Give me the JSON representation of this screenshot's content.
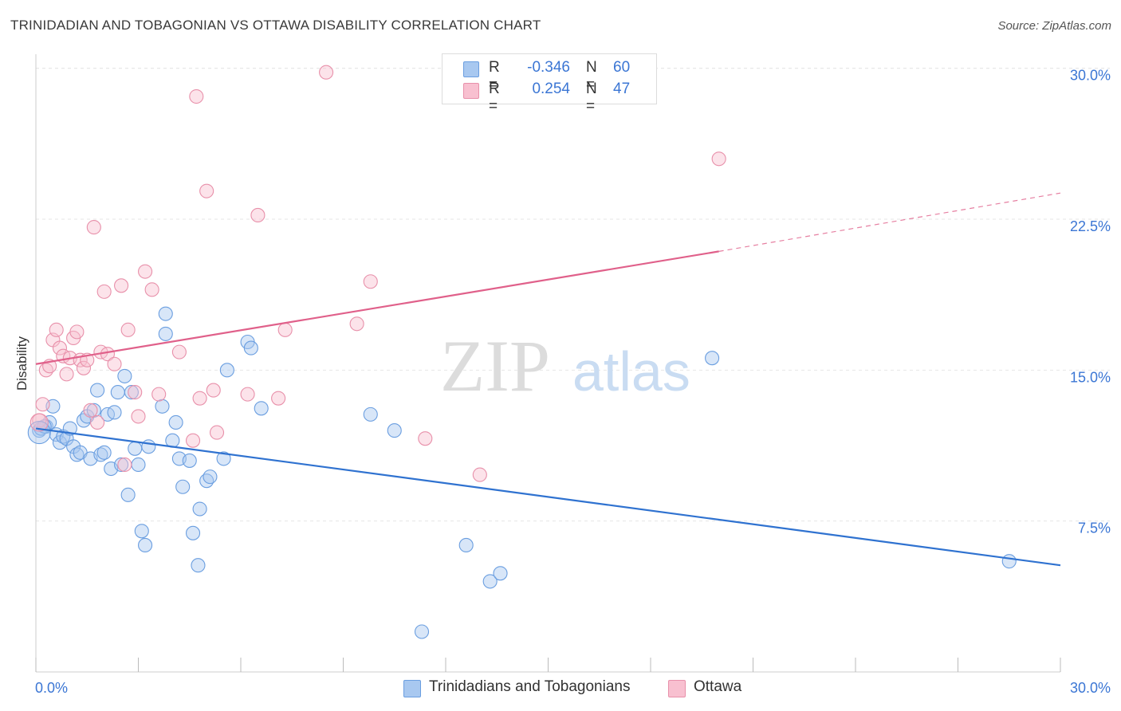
{
  "title": "TRINIDADIAN AND TOBAGONIAN VS OTTAWA DISABILITY CORRELATION CHART",
  "source": "Source: ZipAtlas.com",
  "watermark": {
    "zip": "ZIP",
    "atlas": "atlas"
  },
  "legend": {
    "rows": [
      {
        "r_key": "R =",
        "r_value": "-0.346",
        "n_key": "N =",
        "n_value": "60",
        "color": "#a8c8f0",
        "border": "#6a9ee0"
      },
      {
        "r_key": "R =",
        "r_value": "0.254",
        "n_key": "N =",
        "n_value": "47",
        "color": "#f8c0d0",
        "border": "#e890aa"
      }
    ]
  },
  "bottom_legend": {
    "items": [
      {
        "label": "Trinidadians and Tobagonians",
        "color": "#a8c8f0",
        "border": "#6a9ee0"
      },
      {
        "label": "Ottawa",
        "color": "#f8c0d0",
        "border": "#e890aa"
      }
    ]
  },
  "chart_data": {
    "type": "scatter",
    "title": "TRINIDADIAN AND TOBAGONIAN VS OTTAWA DISABILITY CORRELATION CHART",
    "xlabel": "",
    "ylabel": "Disability",
    "xlim": [
      0,
      30
    ],
    "ylim": [
      0,
      30.7
    ],
    "x_tick_labels": [
      "0.0%",
      "30.0%"
    ],
    "y_ticks": [
      7.5,
      15.0,
      22.5,
      30.0
    ],
    "y_tick_labels": [
      "7.5%",
      "15.0%",
      "22.5%",
      "30.0%"
    ],
    "grid": "horizontal dashed",
    "legend_position": "top-center",
    "series": [
      {
        "name": "Trinidadians and Tobagonians",
        "color": "#6a9ee0",
        "fill": "rgba(168,200,240,0.45)",
        "line_color": "#2f72d0",
        "trend": {
          "x": [
            0,
            30
          ],
          "y": [
            12.1,
            5.3
          ]
        },
        "points": [
          [
            0.1,
            12.0
          ],
          [
            0.3,
            12.2
          ],
          [
            0.4,
            12.4
          ],
          [
            0.5,
            13.2
          ],
          [
            0.6,
            11.8
          ],
          [
            0.7,
            11.4
          ],
          [
            0.8,
            11.7
          ],
          [
            0.9,
            11.6
          ],
          [
            1.0,
            12.1
          ],
          [
            1.1,
            11.2
          ],
          [
            1.2,
            10.8
          ],
          [
            1.3,
            10.9
          ],
          [
            1.4,
            12.5
          ],
          [
            1.5,
            12.7
          ],
          [
            1.6,
            10.6
          ],
          [
            1.7,
            13.0
          ],
          [
            1.8,
            14.0
          ],
          [
            1.9,
            10.8
          ],
          [
            2.0,
            10.9
          ],
          [
            2.1,
            12.8
          ],
          [
            2.2,
            10.1
          ],
          [
            2.3,
            12.9
          ],
          [
            2.4,
            13.9
          ],
          [
            2.5,
            10.3
          ],
          [
            2.6,
            14.7
          ],
          [
            2.7,
            8.8
          ],
          [
            2.8,
            13.9
          ],
          [
            2.9,
            11.1
          ],
          [
            3.0,
            10.3
          ],
          [
            3.1,
            7.0
          ],
          [
            3.2,
            6.3
          ],
          [
            3.3,
            11.2
          ],
          [
            3.7,
            13.2
          ],
          [
            3.8,
            16.8
          ],
          [
            4.0,
            11.5
          ],
          [
            4.1,
            12.4
          ],
          [
            4.2,
            10.6
          ],
          [
            4.3,
            9.2
          ],
          [
            4.5,
            10.5
          ],
          [
            4.6,
            6.9
          ],
          [
            4.75,
            5.3
          ],
          [
            4.8,
            8.1
          ],
          [
            5.0,
            9.5
          ],
          [
            5.1,
            9.7
          ],
          [
            5.5,
            10.6
          ],
          [
            5.6,
            15.0
          ],
          [
            6.2,
            16.4
          ],
          [
            6.3,
            16.1
          ],
          [
            6.6,
            13.1
          ],
          [
            9.8,
            12.8
          ],
          [
            10.5,
            12.0
          ],
          [
            11.3,
            2.0
          ],
          [
            12.6,
            6.3
          ],
          [
            13.3,
            4.5
          ],
          [
            13.6,
            4.9
          ],
          [
            19.8,
            15.6
          ],
          [
            28.5,
            5.5
          ],
          [
            0.15,
            12.1
          ],
          [
            0.25,
            12.2
          ],
          [
            3.8,
            17.8
          ]
        ]
      },
      {
        "name": "Ottawa",
        "color": "#e890aa",
        "fill": "rgba(248,192,208,0.45)",
        "line_color": "#e0608a",
        "trend": {
          "x": [
            0,
            20
          ],
          "y": [
            15.3,
            20.9
          ]
        },
        "trend_extension": {
          "x": [
            20,
            30
          ],
          "y": [
            20.9,
            23.8
          ]
        },
        "points": [
          [
            0.1,
            12.5
          ],
          [
            0.2,
            13.3
          ],
          [
            0.3,
            15.0
          ],
          [
            0.4,
            15.2
          ],
          [
            0.5,
            16.5
          ],
          [
            0.6,
            17.0
          ],
          [
            0.7,
            16.1
          ],
          [
            0.8,
            15.7
          ],
          [
            0.9,
            14.8
          ],
          [
            1.0,
            15.6
          ],
          [
            1.1,
            16.6
          ],
          [
            1.2,
            16.9
          ],
          [
            1.3,
            15.5
          ],
          [
            1.4,
            15.1
          ],
          [
            1.5,
            15.5
          ],
          [
            1.6,
            13.0
          ],
          [
            1.7,
            22.1
          ],
          [
            1.8,
            12.4
          ],
          [
            1.9,
            15.9
          ],
          [
            2.0,
            18.9
          ],
          [
            2.1,
            15.8
          ],
          [
            2.3,
            15.3
          ],
          [
            2.5,
            19.2
          ],
          [
            2.6,
            10.3
          ],
          [
            2.7,
            17.0
          ],
          [
            2.9,
            13.9
          ],
          [
            3.0,
            12.7
          ],
          [
            3.2,
            19.9
          ],
          [
            3.4,
            19.0
          ],
          [
            3.6,
            13.8
          ],
          [
            4.2,
            15.9
          ],
          [
            4.6,
            11.5
          ],
          [
            4.7,
            28.6
          ],
          [
            4.8,
            13.6
          ],
          [
            5.0,
            23.9
          ],
          [
            5.2,
            14.0
          ],
          [
            5.3,
            11.9
          ],
          [
            6.2,
            13.8
          ],
          [
            6.5,
            22.7
          ],
          [
            7.1,
            13.6
          ],
          [
            7.3,
            17.0
          ],
          [
            8.5,
            29.8
          ],
          [
            9.4,
            17.3
          ],
          [
            9.8,
            19.4
          ],
          [
            11.4,
            11.6
          ],
          [
            13.0,
            9.8
          ],
          [
            20.0,
            25.5
          ]
        ]
      }
    ]
  }
}
